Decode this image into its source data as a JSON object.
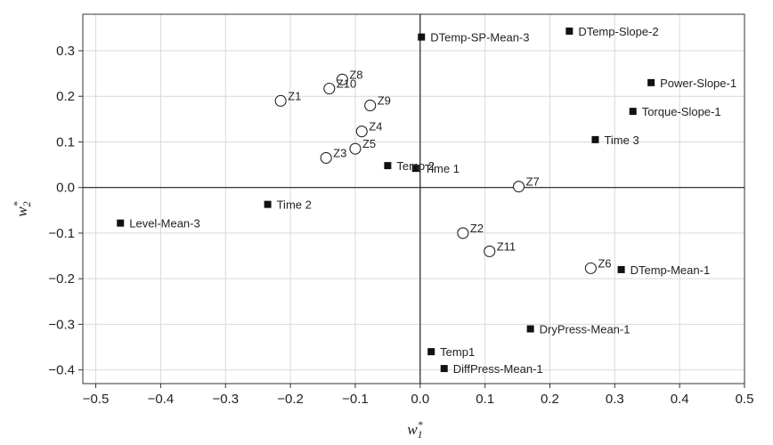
{
  "chart_data": {
    "type": "scatter",
    "xlabel": "w*1",
    "ylabel": "w*2",
    "xlabel_main": "w",
    "xlabel_sup": "*",
    "xlabel_sub": "1",
    "ylabel_main": "w",
    "ylabel_sup": "*",
    "ylabel_sub": "2",
    "xlim": [
      -0.52,
      0.5
    ],
    "ylim": [
      -0.43,
      0.38
    ],
    "xticks": [
      -0.5,
      -0.4,
      -0.3,
      -0.2,
      -0.1,
      0.0,
      0.1,
      0.2,
      0.3,
      0.4,
      0.5
    ],
    "yticks": [
      -0.4,
      -0.3,
      -0.2,
      -0.1,
      0.0,
      0.1,
      0.2,
      0.3
    ],
    "xtick_labels": [
      "−0.5",
      "−0.4",
      "−0.3",
      "−0.2",
      "−0.1",
      "0.0",
      "0.1",
      "0.2",
      "0.3",
      "0.4",
      "0.5"
    ],
    "ytick_labels": [
      "−0.4",
      "−0.3",
      "−0.2",
      "−0.1",
      "0.0",
      "0.1",
      "0.2",
      "0.3"
    ],
    "grid": true,
    "series": [
      {
        "marker": "open-circle",
        "points": [
          {
            "label": "Z1",
            "x": -0.215,
            "y": 0.19
          },
          {
            "label": "Z8",
            "x": -0.12,
            "y": 0.237
          },
          {
            "label": "Z10",
            "x": -0.14,
            "y": 0.217
          },
          {
            "label": "Z9",
            "x": -0.077,
            "y": 0.18
          },
          {
            "label": "Z4",
            "x": -0.09,
            "y": 0.123
          },
          {
            "label": "Z5",
            "x": -0.1,
            "y": 0.085
          },
          {
            "label": "Z3",
            "x": -0.145,
            "y": 0.065
          },
          {
            "label": "Z7",
            "x": 0.152,
            "y": 0.002
          },
          {
            "label": "Z2",
            "x": 0.066,
            "y": -0.1
          },
          {
            "label": "Z11",
            "x": 0.107,
            "y": -0.14
          },
          {
            "label": "Z6",
            "x": 0.263,
            "y": -0.177
          }
        ]
      },
      {
        "marker": "filled-square",
        "points": [
          {
            "label": "DTemp-SP-Mean-3",
            "x": 0.002,
            "y": 0.33
          },
          {
            "label": "DTemp-Slope-2",
            "x": 0.23,
            "y": 0.343
          },
          {
            "label": "Power-Slope-1",
            "x": 0.356,
            "y": 0.23
          },
          {
            "label": "Torque-Slope-1",
            "x": 0.328,
            "y": 0.167
          },
          {
            "label": "Time 3",
            "x": 0.27,
            "y": 0.105
          },
          {
            "label": "Temp 2",
            "x": -0.05,
            "y": 0.048
          },
          {
            "label": "Time 1",
            "x": -0.007,
            "y": 0.042
          },
          {
            "label": "Time 2",
            "x": -0.235,
            "y": -0.037
          },
          {
            "label": "Level-Mean-3",
            "x": -0.462,
            "y": -0.078
          },
          {
            "label": "DTemp-Mean-1",
            "x": 0.31,
            "y": -0.18
          },
          {
            "label": "DryPress-Mean-1",
            "x": 0.17,
            "y": -0.31
          },
          {
            "label": "Temp1",
            "x": 0.017,
            "y": -0.36
          },
          {
            "label": "DiffPress-Mean-1",
            "x": 0.037,
            "y": -0.397
          }
        ]
      }
    ]
  }
}
